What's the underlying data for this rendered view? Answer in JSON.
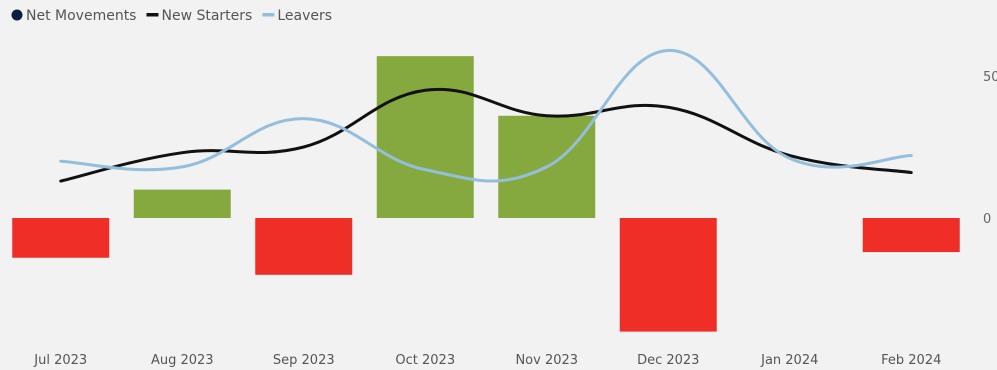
{
  "chart_data": {
    "type": "bar",
    "title": "",
    "xlabel": "",
    "ylabel": "",
    "categories": [
      "Jul 2023",
      "Aug 2023",
      "Sep 2023",
      "Oct 2023",
      "Nov 2023",
      "Dec 2023",
      "Jan 2024",
      "Feb 2024"
    ],
    "ylim": [
      -40,
      60
    ],
    "y_ticks": [
      {
        "value": 0,
        "label": "0"
      },
      {
        "value": 50,
        "label": "50"
      }
    ],
    "grid": false,
    "legend": "top-left",
    "series": [
      {
        "name": "Net Movements",
        "type": "bar",
        "values": [
          -14,
          10,
          -20,
          57,
          36,
          -40,
          0,
          -12
        ],
        "positive_color": "#86a93f",
        "negative_color": "#ef2e27",
        "legend_color": "#0b1f3f"
      },
      {
        "name": "New Starters",
        "type": "line",
        "values": [
          13,
          23,
          25,
          45,
          36,
          39,
          22,
          16
        ],
        "color": "#111111"
      },
      {
        "name": "Leavers",
        "type": "line",
        "values": [
          20,
          18,
          35,
          17,
          18,
          59,
          21,
          22
        ],
        "color": "#93bedd"
      }
    ]
  }
}
